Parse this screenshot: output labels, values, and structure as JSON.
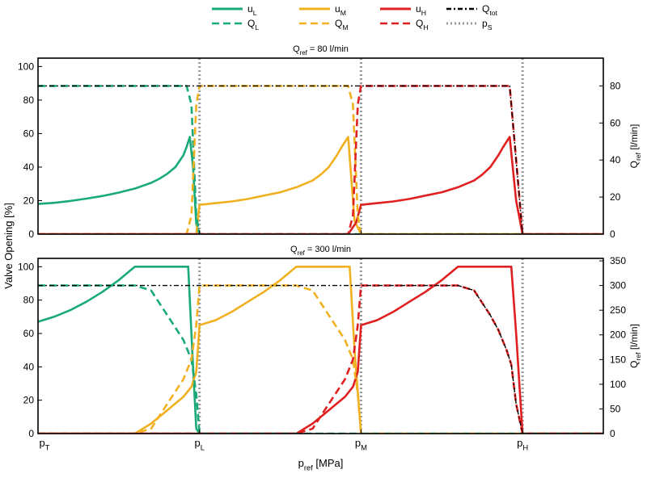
{
  "figure": {
    "legend": [
      {
        "key": "uL",
        "text": "u",
        "sub": "L",
        "color": "#1aaa7a",
        "dash": "solid"
      },
      {
        "key": "uM",
        "text": "u",
        "sub": "M",
        "color": "#f0b020",
        "dash": "solid"
      },
      {
        "key": "uH",
        "text": "u",
        "sub": "H",
        "color": "#e02020",
        "dash": "solid"
      },
      {
        "key": "Qtot",
        "text": "Q",
        "sub": "tot",
        "color": "#000000",
        "dash": "dashdot"
      },
      {
        "key": "QL",
        "text": "Q",
        "sub": "L",
        "color": "#1aaa7a",
        "dash": "dashed"
      },
      {
        "key": "QM",
        "text": "Q",
        "sub": "M",
        "color": "#f0b020",
        "dash": "dashed"
      },
      {
        "key": "QH",
        "text": "Q",
        "sub": "H",
        "color": "#e02020",
        "dash": "dashed"
      },
      {
        "key": "pS",
        "text": "p",
        "sub": "S",
        "color": "#999999",
        "dash": "dotted"
      }
    ],
    "y_label_left": "Valve Opening [%]",
    "y_label_right": {
      "text": "Q",
      "sub": "ref",
      "unit": " [l/min]"
    },
    "x_label": {
      "text": "p",
      "sub": "ref",
      "unit": " [MPa]"
    },
    "x_ticks": [
      {
        "text": "p",
        "sub": "T",
        "x": 0
      },
      {
        "text": "p",
        "sub": "L",
        "x": 1
      },
      {
        "text": "p",
        "sub": "M",
        "x": 2
      },
      {
        "text": "p",
        "sub": "H",
        "x": 3
      }
    ],
    "supply_pressure_lines": [
      1,
      2,
      3
    ]
  },
  "chart_data": [
    {
      "type": "line",
      "title": {
        "text": "Q",
        "sub": "ref",
        "rest": " = 80 l/min"
      },
      "xlim": [
        0,
        3.5
      ],
      "ylim": [
        0,
        105
      ],
      "y_ticks": [
        0,
        20,
        40,
        60,
        80,
        100
      ],
      "y2lim": [
        0,
        95
      ],
      "y2_ticks": [
        0,
        20,
        40,
        60,
        80
      ],
      "series": [
        {
          "key": "uL",
          "axis": "left",
          "x": [
            0,
            0.1,
            0.2,
            0.3,
            0.4,
            0.5,
            0.6,
            0.7,
            0.75,
            0.8,
            0.85,
            0.9,
            0.92,
            0.94,
            0.96,
            0.98,
            1.0
          ],
          "y": [
            18,
            18.7,
            19.8,
            21.2,
            22.8,
            24.8,
            27.2,
            30.6,
            33,
            36,
            40,
            47,
            52,
            58,
            40,
            6,
            0
          ]
        },
        {
          "key": "uM",
          "axis": "left",
          "x": [
            0,
            0.94,
            0.98,
            1.0,
            1.1,
            1.2,
            1.3,
            1.4,
            1.5,
            1.6,
            1.7,
            1.75,
            1.8,
            1.85,
            1.88,
            1.92,
            1.96,
            2.0,
            3.5
          ],
          "y": [
            0,
            0,
            0,
            17.5,
            18.5,
            19.5,
            21,
            23,
            25,
            28,
            32,
            35.5,
            40,
            47,
            52,
            58,
            8,
            0,
            0
          ]
        },
        {
          "key": "uH",
          "axis": "left",
          "x": [
            0,
            1.92,
            1.97,
            2.0,
            2.1,
            2.2,
            2.3,
            2.4,
            2.5,
            2.6,
            2.7,
            2.75,
            2.8,
            2.85,
            2.88,
            2.92,
            2.96,
            3.0,
            3.5
          ],
          "y": [
            0,
            0,
            7,
            17.5,
            18.5,
            19.5,
            21,
            23,
            25,
            28,
            32,
            35.5,
            40,
            47,
            52,
            58,
            20,
            0,
            0
          ]
        },
        {
          "key": "QL",
          "axis": "right",
          "x": [
            0,
            0.92,
            0.95,
            0.98,
            1.0,
            3.5
          ],
          "y": [
            80,
            80,
            70,
            10,
            0,
            0
          ]
        },
        {
          "key": "QM",
          "axis": "right",
          "x": [
            0,
            0.92,
            0.95,
            0.98,
            1.0,
            1.92,
            1.95,
            1.98,
            2.0,
            3.5
          ],
          "y": [
            0,
            0,
            10,
            70,
            80,
            80,
            70,
            10,
            0,
            0
          ]
        },
        {
          "key": "QH",
          "axis": "right",
          "x": [
            0,
            1.92,
            1.95,
            1.98,
            2.0,
            2.92,
            2.96,
            3.0,
            3.5
          ],
          "y": [
            0,
            0,
            10,
            70,
            80,
            80,
            40,
            0,
            0
          ]
        },
        {
          "key": "Qtot",
          "axis": "right",
          "x": [
            0,
            2.92,
            3.0
          ],
          "y": [
            80,
            80,
            0
          ]
        }
      ]
    },
    {
      "type": "line",
      "title": {
        "text": "Q",
        "sub": "ref",
        "rest": " = 300 l/min"
      },
      "xlim": [
        0,
        3.5
      ],
      "ylim": [
        0,
        105
      ],
      "y_ticks": [
        0,
        20,
        40,
        60,
        80,
        100
      ],
      "y2lim": [
        0,
        355
      ],
      "y2_ticks": [
        0,
        50,
        100,
        150,
        200,
        250,
        300,
        350
      ],
      "series": [
        {
          "key": "uL",
          "axis": "left",
          "x": [
            0,
            0.1,
            0.2,
            0.3,
            0.4,
            0.5,
            0.6,
            0.7,
            0.8,
            0.9,
            0.93,
            0.96,
            0.98,
            1.0
          ],
          "y": [
            67,
            70,
            74,
            79,
            85,
            92,
            100,
            100,
            100,
            100,
            100,
            40,
            3,
            0
          ]
        },
        {
          "key": "uM",
          "axis": "left",
          "x": [
            0,
            0.6,
            0.7,
            0.8,
            0.9,
            0.95,
            0.98,
            1.0,
            1.1,
            1.2,
            1.3,
            1.4,
            1.5,
            1.6,
            1.7,
            1.8,
            1.9,
            1.93,
            1.96,
            2.0
          ],
          "y": [
            0,
            0,
            6,
            14,
            22,
            28,
            37,
            65,
            68,
            73,
            79,
            85,
            92,
            100,
            100,
            100,
            100,
            100,
            50,
            0
          ]
        },
        {
          "key": "uH",
          "axis": "left",
          "x": [
            0,
            1.6,
            1.7,
            1.8,
            1.9,
            1.95,
            1.98,
            2.0,
            2.1,
            2.2,
            2.3,
            2.4,
            2.5,
            2.6,
            2.7,
            2.8,
            2.9,
            2.93,
            2.96,
            3.0,
            3.5
          ],
          "y": [
            0,
            0,
            6,
            14,
            22,
            28,
            37,
            65,
            68,
            73,
            79,
            85,
            92,
            100,
            100,
            100,
            100,
            100,
            60,
            0,
            0
          ]
        },
        {
          "key": "QL",
          "axis": "right",
          "x": [
            0,
            0.6,
            0.7,
            0.8,
            0.9,
            0.95,
            0.98,
            1.0,
            3.5
          ],
          "y": [
            300,
            300,
            290,
            240,
            190,
            150,
            80,
            0,
            0
          ]
        },
        {
          "key": "QM",
          "axis": "right",
          "x": [
            0,
            0.6,
            0.7,
            0.8,
            0.9,
            0.95,
            0.98,
            1.0,
            1.6,
            1.7,
            1.8,
            1.9,
            1.95,
            1.98,
            2.0,
            3.5
          ],
          "y": [
            0,
            0,
            10,
            60,
            110,
            150,
            220,
            300,
            300,
            290,
            240,
            190,
            150,
            80,
            0,
            0
          ]
        },
        {
          "key": "QH",
          "axis": "right",
          "x": [
            0,
            1.6,
            1.7,
            1.8,
            1.9,
            1.95,
            1.98,
            2.0,
            2.6,
            2.7,
            2.8,
            2.85,
            2.9,
            2.93,
            2.96,
            3.0,
            3.5
          ],
          "y": [
            0,
            0,
            10,
            60,
            110,
            150,
            220,
            300,
            300,
            290,
            240,
            210,
            170,
            140,
            60,
            0,
            0
          ]
        },
        {
          "key": "Qtot",
          "axis": "right",
          "x": [
            0,
            2.6,
            2.7,
            2.8,
            2.85,
            2.9,
            2.93,
            2.96,
            3.0
          ],
          "y": [
            300,
            300,
            290,
            240,
            210,
            170,
            140,
            60,
            0
          ]
        }
      ]
    }
  ]
}
